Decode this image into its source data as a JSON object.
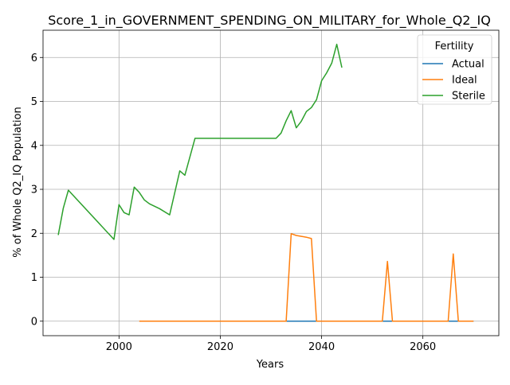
{
  "chart_data": {
    "type": "line",
    "title": "Score_1_in_GOVERNMENT_SPENDING_ON_MILITARY_for_Whole_Q2_IQ",
    "xlabel": "Years",
    "ylabel": "% of Whole Q2_IQ Population",
    "xlim": [
      1985,
      2075
    ],
    "ylim": [
      -0.33,
      6.62
    ],
    "xticks": [
      2000,
      2020,
      2040,
      2060
    ],
    "yticks": [
      0,
      1,
      2,
      3,
      4,
      5,
      6
    ],
    "grid": true,
    "legend": {
      "title": "Fertility",
      "placement": "top-right"
    },
    "series": [
      {
        "name": "Actual",
        "color": "#1f77b4",
        "x": [
          2033,
          2034,
          2035,
          2036,
          2037,
          2038,
          2039,
          2040,
          2045,
          2050,
          2052,
          2053,
          2054,
          2055,
          2060,
          2065,
          2066,
          2067,
          2068,
          2070
        ],
        "y": [
          0,
          0,
          0,
          0,
          0,
          0,
          0,
          0,
          0,
          0,
          0,
          0,
          0,
          0,
          0,
          0,
          0,
          0,
          0,
          0
        ]
      },
      {
        "name": "Ideal",
        "color": "#ff7f0e",
        "x": [
          2004,
          2010,
          2020,
          2030,
          2033,
          2034,
          2035,
          2036,
          2037,
          2038,
          2039,
          2040,
          2045,
          2050,
          2052,
          2053,
          2054,
          2055,
          2060,
          2065,
          2066,
          2067,
          2068,
          2070
        ],
        "y": [
          0,
          0,
          0,
          0,
          0,
          1.99,
          1.95,
          1.93,
          1.91,
          1.88,
          0,
          0,
          0,
          0,
          0,
          1.36,
          0,
          0,
          0,
          0,
          1.53,
          0,
          0,
          0
        ]
      },
      {
        "name": "Sterile",
        "color": "#2ca02c",
        "x": [
          1988,
          1989,
          1990,
          1999,
          2000,
          2001,
          2002,
          2003,
          2004,
          2005,
          2006,
          2008,
          2010,
          2012,
          2013,
          2015,
          2020,
          2025,
          2031,
          2032,
          2033,
          2034,
          2035,
          2036,
          2037,
          2038,
          2039,
          2040,
          2041,
          2042,
          2043,
          2044
        ],
        "y": [
          1.96,
          2.57,
          2.98,
          1.86,
          2.65,
          2.47,
          2.42,
          3.05,
          2.93,
          2.76,
          2.67,
          2.56,
          2.42,
          3.42,
          3.32,
          4.16,
          4.16,
          4.16,
          4.16,
          4.28,
          4.56,
          4.79,
          4.4,
          4.55,
          4.77,
          4.86,
          5.04,
          5.47,
          5.65,
          5.87,
          6.3,
          5.77
        ]
      }
    ]
  }
}
